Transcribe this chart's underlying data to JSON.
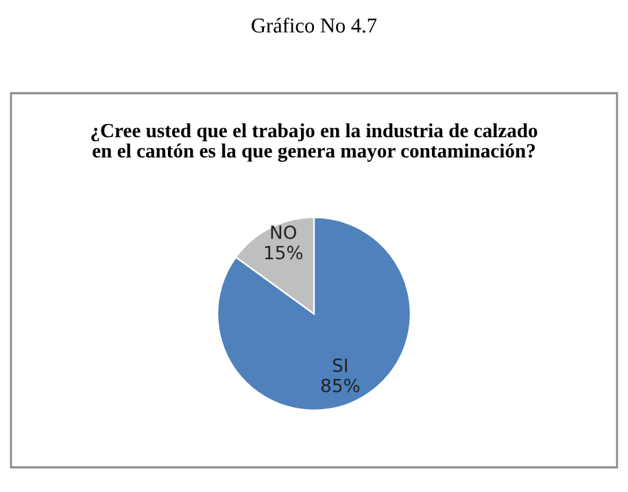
{
  "chart_data": {
    "type": "pie",
    "title": "Gráfico No 4.7",
    "subtitle": "¿Cree usted que el trabajo en la industria de calzado\nen el cantón es la que genera mayor contaminación?",
    "categories": [
      "SI",
      "NO"
    ],
    "values": [
      85,
      15
    ],
    "colors": [
      "#4f81bd",
      "#bfbfbf"
    ],
    "value_labels": [
      "85%",
      "15%"
    ],
    "legend": false
  }
}
